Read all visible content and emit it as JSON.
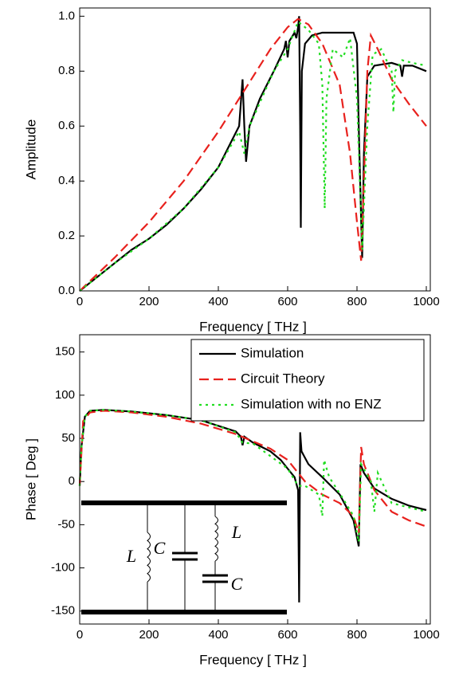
{
  "chart_data": [
    {
      "type": "line",
      "xlabel": "Frequency [ THz ]",
      "ylabel": "Amplitude",
      "xlim": [
        0,
        1000
      ],
      "ylim": [
        0,
        1.03
      ],
      "xticks": [
        0,
        200,
        400,
        600,
        800,
        1000
      ],
      "yticks": [
        {
          "value": 0,
          "label": "0.0"
        },
        {
          "value": 0.2,
          "label": "0.2"
        },
        {
          "value": 0.4,
          "label": "0.4"
        },
        {
          "value": 0.6,
          "label": "0.6"
        },
        {
          "value": 0.8,
          "label": "0.8"
        },
        {
          "value": 1,
          "label": "1.0"
        }
      ],
      "series": [
        {
          "name": "Simulation",
          "color": "#000000",
          "dash": "solid",
          "x": [
            0,
            50,
            100,
            150,
            200,
            250,
            300,
            350,
            400,
            440,
            460,
            470,
            475,
            480,
            490,
            520,
            560,
            590,
            595,
            600,
            605,
            620,
            625,
            630,
            633,
            636,
            638,
            641,
            650,
            670,
            700,
            750,
            790,
            800,
            805,
            810,
            815,
            820,
            830,
            850,
            900,
            925,
            930,
            935,
            960,
            1000
          ],
          "values": [
            0,
            0.05,
            0.1,
            0.15,
            0.19,
            0.24,
            0.3,
            0.37,
            0.45,
            0.55,
            0.6,
            0.77,
            0.6,
            0.47,
            0.6,
            0.7,
            0.8,
            0.88,
            0.91,
            0.85,
            0.91,
            0.94,
            0.92,
            0.96,
            1.0,
            0.6,
            0.23,
            0.8,
            0.9,
            0.93,
            0.94,
            0.94,
            0.94,
            0.9,
            0.6,
            0.35,
            0.12,
            0.5,
            0.78,
            0.82,
            0.83,
            0.82,
            0.78,
            0.82,
            0.82,
            0.8
          ]
        },
        {
          "name": "Circuit Theory",
          "color": "#e8211d",
          "dash": "dashed",
          "x": [
            0,
            100,
            200,
            300,
            400,
            500,
            550,
            600,
            630,
            660,
            700,
            750,
            780,
            800,
            812,
            820,
            830,
            840,
            860,
            900,
            950,
            1000
          ],
          "values": [
            0,
            0.12,
            0.25,
            0.4,
            0.58,
            0.78,
            0.88,
            0.96,
            0.99,
            0.97,
            0.9,
            0.75,
            0.5,
            0.25,
            0.11,
            0.4,
            0.8,
            0.93,
            0.88,
            0.77,
            0.68,
            0.6
          ]
        },
        {
          "name": "Simulation with no ENZ",
          "color": "#22dd22",
          "dash": "dotted",
          "x": [
            0,
            100,
            200,
            300,
            400,
            460,
            475,
            490,
            560,
            600,
            630,
            660,
            690,
            700,
            707,
            712,
            730,
            760,
            780,
            800,
            815,
            830,
            845,
            870,
            900,
            905,
            910,
            930,
            960,
            1000
          ],
          "values": [
            0,
            0.1,
            0.19,
            0.3,
            0.45,
            0.58,
            0.5,
            0.6,
            0.8,
            0.88,
            0.98,
            0.95,
            0.9,
            0.75,
            0.3,
            0.7,
            0.88,
            0.85,
            0.92,
            0.7,
            0.15,
            0.6,
            0.86,
            0.88,
            0.8,
            0.65,
            0.8,
            0.84,
            0.83,
            0.82
          ]
        }
      ]
    },
    {
      "type": "line",
      "xlabel": "Frequency [ THz ]",
      "ylabel": "Phase [ Deg ]",
      "xlim": [
        0,
        1000
      ],
      "ylim": [
        -165,
        170
      ],
      "xticks": [
        0,
        200,
        400,
        600,
        800,
        1000
      ],
      "yticks": [
        -150,
        -100,
        -50,
        0,
        50,
        100,
        150
      ],
      "legend": "upper right",
      "annotations": [
        "L",
        "C",
        "L",
        "C"
      ],
      "series": [
        {
          "name": "Simulation",
          "color": "#000000",
          "dash": "solid",
          "x": [
            0,
            5,
            15,
            30,
            70,
            150,
            250,
            350,
            450,
            465,
            470,
            475,
            500,
            550,
            580,
            600,
            620,
            630,
            633,
            636,
            640,
            660,
            700,
            750,
            790,
            805,
            810,
            820,
            850,
            900,
            950,
            1000
          ],
          "values": [
            -5,
            40,
            75,
            82,
            83,
            81,
            77,
            71,
            58,
            52,
            42,
            52,
            45,
            35,
            25,
            15,
            5,
            -10,
            -140,
            57,
            35,
            20,
            5,
            -15,
            -45,
            -75,
            20,
            10,
            -8,
            -20,
            -28,
            -33
          ]
        },
        {
          "name": "Circuit Theory",
          "color": "#e8211d",
          "dash": "dashed",
          "x": [
            0,
            10,
            30,
            70,
            150,
            250,
            350,
            450,
            550,
            600,
            650,
            700,
            750,
            790,
            805,
            812,
            820,
            850,
            900,
            950,
            1000
          ],
          "values": [
            -5,
            70,
            80,
            82,
            80,
            75,
            67,
            55,
            38,
            25,
            0,
            -15,
            -25,
            -40,
            -60,
            40,
            20,
            -10,
            -35,
            -45,
            -52
          ]
        },
        {
          "name": "Simulation with no ENZ",
          "color": "#22dd22",
          "dash": "dotted",
          "x": [
            0,
            5,
            15,
            30,
            70,
            150,
            250,
            350,
            450,
            470,
            500,
            600,
            630,
            650,
            690,
            700,
            705,
            720,
            760,
            790,
            805,
            812,
            840,
            850,
            860,
            900,
            1000
          ],
          "values": [
            -5,
            40,
            75,
            82,
            83,
            81,
            77,
            71,
            57,
            45,
            44,
            15,
            -5,
            -5,
            -15,
            -40,
            25,
            5,
            -20,
            -40,
            -70,
            20,
            0,
            -35,
            10,
            -25,
            -35
          ]
        }
      ]
    }
  ]
}
